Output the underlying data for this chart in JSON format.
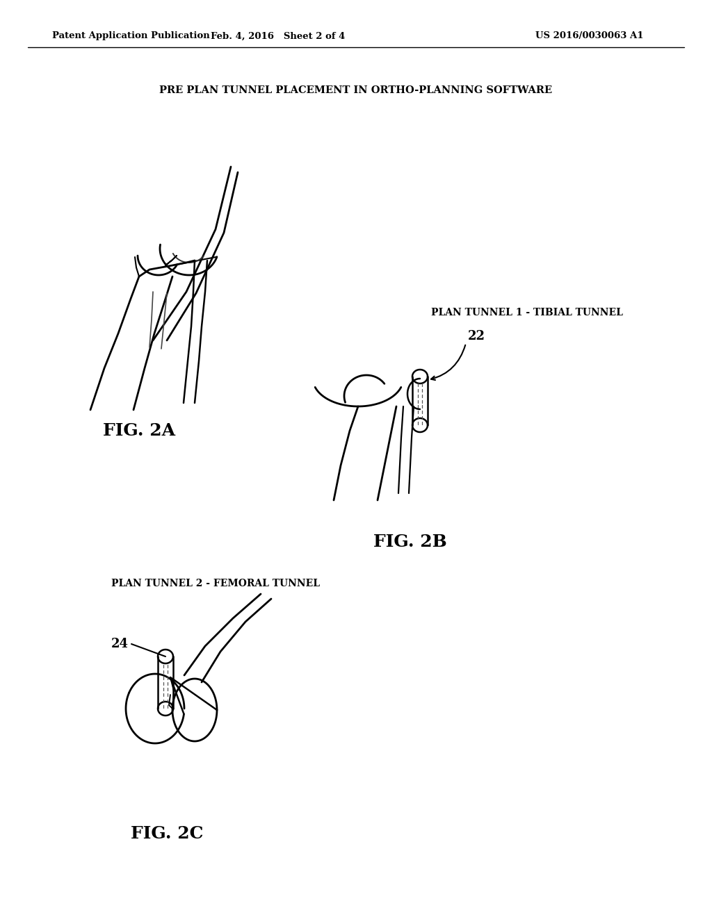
{
  "background_color": "#ffffff",
  "header_left": "Patent Application Publication",
  "header_mid": "Feb. 4, 2016   Sheet 2 of 4",
  "header_right": "US 2016/0030063 A1",
  "title_2a": "PRE PLAN TUNNEL PLACEMENT IN ORTHO-PLANNING SOFTWARE",
  "label_2a": "FIG. 2A",
  "label_2b_title": "PLAN TUNNEL 1 - TIBIAL TUNNEL",
  "label_2b": "FIG. 2B",
  "label_2b_num": "22",
  "label_2c_title": "PLAN TUNNEL 2 - FEMORAL TUNNEL",
  "label_2c": "FIG. 2C",
  "label_2c_num": "24"
}
